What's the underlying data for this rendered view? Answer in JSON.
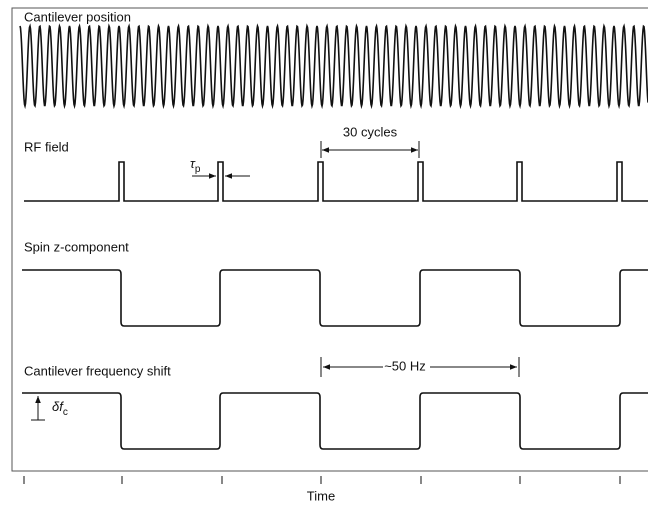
{
  "traces": [
    {
      "label": "Cantilever position"
    },
    {
      "label": "RF field"
    },
    {
      "label": "Spin z-component"
    },
    {
      "label": "Cantilever frequency shift"
    }
  ],
  "annotations": {
    "cycles": "30 cycles",
    "pulse_width": {
      "symbol": "τ",
      "subscript": "p"
    },
    "period": "~50 Hz",
    "shift": {
      "symbol": "δf",
      "subscript": "c"
    }
  },
  "axis_label": "Time"
}
